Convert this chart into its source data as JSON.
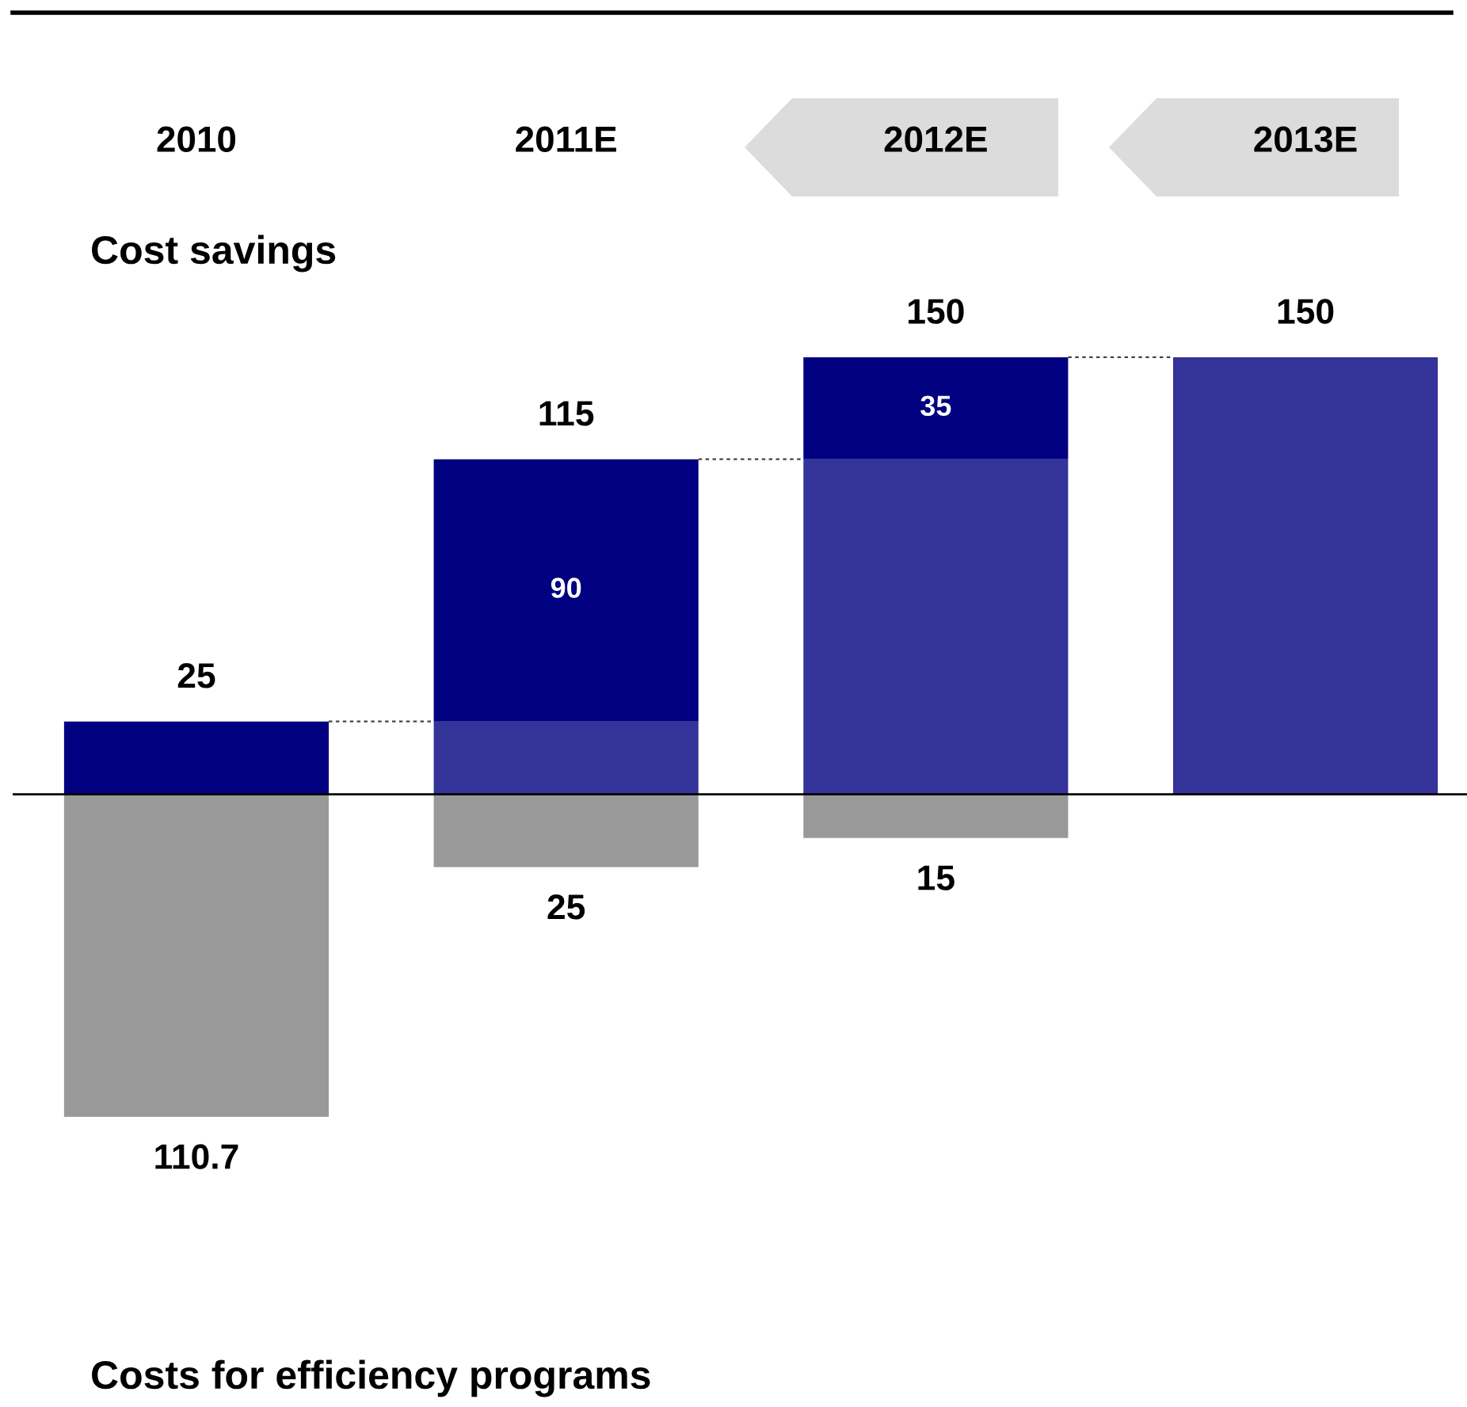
{
  "chart_data": {
    "type": "bar",
    "title": "Cost savings",
    "stacked": true,
    "categories": [
      "2010",
      "2011E",
      "2012E",
      "2013E"
    ],
    "series": [
      {
        "color": "#333399",
        "values": [
          0,
          25,
          115,
          150
        ]
      },
      {
        "color": "#000080",
        "values": [
          25,
          90,
          35,
          0
        ],
        "value_labels": [
          null,
          "90",
          "35",
          null
        ]
      },
      {
        "color": "#999999",
        "values": [
          -110.7,
          -25,
          -15,
          0
        ]
      }
    ],
    "tick_labels": "x",
    "grid": false,
    "legend": false,
    "annotations": [
      {
        "text": "25",
        "x": "2010",
        "y": 25
      },
      {
        "text": "115",
        "x": "2011E",
        "y": 115
      },
      {
        "text": "150",
        "x": "2012E",
        "y": 150
      },
      {
        "text": "150",
        "x": "2013E",
        "y": 150
      },
      {
        "text": "110.7",
        "x": "2010",
        "y": -110.7
      },
      {
        "text": "25",
        "x": "2011E",
        "y": -25
      },
      {
        "text": "15",
        "x": "2012E",
        "y": -15
      },
      "Costs for efficiency programs"
    ]
  }
}
